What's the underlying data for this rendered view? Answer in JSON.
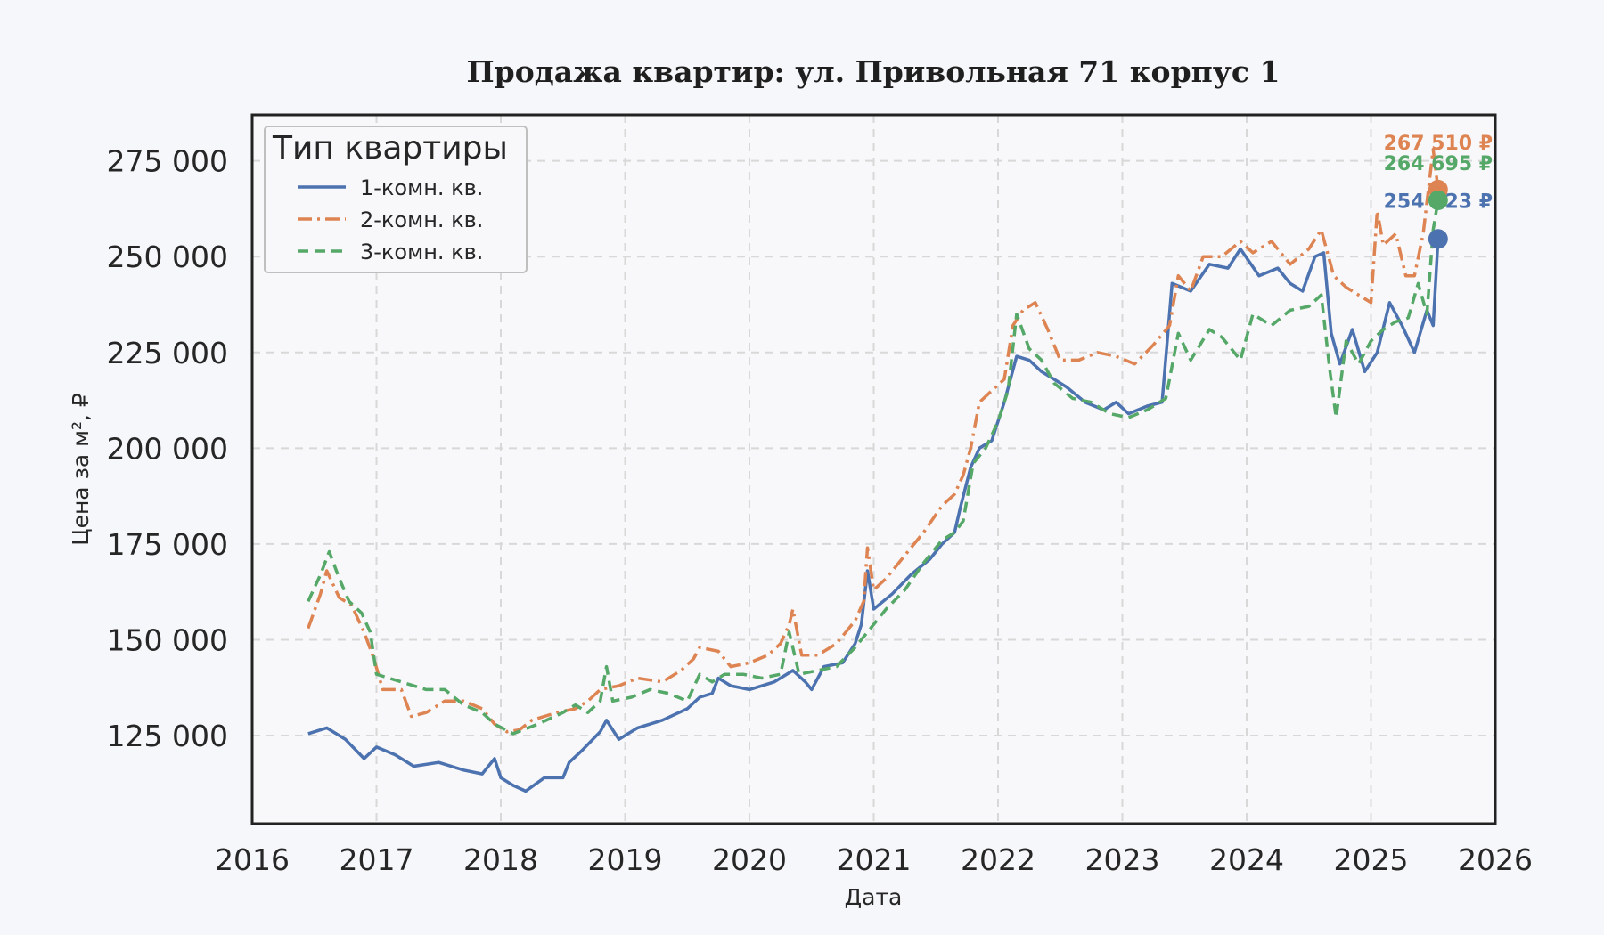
{
  "chart_data": {
    "type": "line",
    "title": "Продажа квартир: ул. Привольная 71 корпус 1",
    "xlabel": "Дата",
    "ylabel": "Цена за м², ₽",
    "xlim": [
      2016,
      2026
    ],
    "ylim": [
      102000,
      287000
    ],
    "x_ticks": [
      "2016",
      "2017",
      "2018",
      "2019",
      "2020",
      "2021",
      "2022",
      "2023",
      "2024",
      "2025",
      "2026"
    ],
    "y_ticks": [
      {
        "value": 125000,
        "label": "125 000"
      },
      {
        "value": 150000,
        "label": "150 000"
      },
      {
        "value": 175000,
        "label": "175 000"
      },
      {
        "value": 200000,
        "label": "200 000"
      },
      {
        "value": 225000,
        "label": "225 000"
      },
      {
        "value": 250000,
        "label": "250 000"
      },
      {
        "value": 275000,
        "label": "275 000"
      }
    ],
    "grid": true,
    "legend": {
      "title": "Тип квартиры",
      "position": "top-left"
    },
    "colors": {
      "one_room": "#4c72b0",
      "two_room": "#dd8452",
      "three_room": "#55a868"
    },
    "series": [
      {
        "name": "1-комн. кв.",
        "color": "#4c72b0",
        "style": "solid",
        "points": [
          [
            2016.45,
            125500
          ],
          [
            2016.6,
            127000
          ],
          [
            2016.75,
            124000
          ],
          [
            2016.9,
            119000
          ],
          [
            2017.0,
            122000
          ],
          [
            2017.15,
            120000
          ],
          [
            2017.3,
            117000
          ],
          [
            2017.5,
            118000
          ],
          [
            2017.7,
            116000
          ],
          [
            2017.85,
            115000
          ],
          [
            2017.95,
            119000
          ],
          [
            2018.0,
            114000
          ],
          [
            2018.1,
            112000
          ],
          [
            2018.2,
            110500
          ],
          [
            2018.35,
            114000
          ],
          [
            2018.5,
            114000
          ],
          [
            2018.55,
            118000
          ],
          [
            2018.65,
            121000
          ],
          [
            2018.8,
            126000
          ],
          [
            2018.85,
            129000
          ],
          [
            2018.95,
            124000
          ],
          [
            2019.1,
            127000
          ],
          [
            2019.3,
            129000
          ],
          [
            2019.5,
            132000
          ],
          [
            2019.6,
            135000
          ],
          [
            2019.7,
            136000
          ],
          [
            2019.75,
            140000
          ],
          [
            2019.85,
            138000
          ],
          [
            2020.0,
            137000
          ],
          [
            2020.2,
            139000
          ],
          [
            2020.35,
            142000
          ],
          [
            2020.45,
            139000
          ],
          [
            2020.5,
            137000
          ],
          [
            2020.6,
            143000
          ],
          [
            2020.75,
            144000
          ],
          [
            2020.85,
            149000
          ],
          [
            2020.9,
            154000
          ],
          [
            2020.95,
            168000
          ],
          [
            2021.0,
            158000
          ],
          [
            2021.15,
            162000
          ],
          [
            2021.3,
            167000
          ],
          [
            2021.45,
            171000
          ],
          [
            2021.55,
            175000
          ],
          [
            2021.65,
            178000
          ],
          [
            2021.7,
            185000
          ],
          [
            2021.78,
            195000
          ],
          [
            2021.85,
            200000
          ],
          [
            2021.95,
            202000
          ],
          [
            2022.05,
            212000
          ],
          [
            2022.15,
            224000
          ],
          [
            2022.25,
            223000
          ],
          [
            2022.35,
            220000
          ],
          [
            2022.45,
            218000
          ],
          [
            2022.55,
            216000
          ],
          [
            2022.7,
            212000
          ],
          [
            2022.85,
            210000
          ],
          [
            2022.95,
            212000
          ],
          [
            2023.05,
            209000
          ],
          [
            2023.2,
            211000
          ],
          [
            2023.32,
            212000
          ],
          [
            2023.4,
            243000
          ],
          [
            2023.55,
            241000
          ],
          [
            2023.7,
            248000
          ],
          [
            2023.85,
            247000
          ],
          [
            2023.95,
            252000
          ],
          [
            2024.1,
            245000
          ],
          [
            2024.25,
            247000
          ],
          [
            2024.35,
            243000
          ],
          [
            2024.45,
            241000
          ],
          [
            2024.55,
            250000
          ],
          [
            2024.62,
            251000
          ],
          [
            2024.68,
            230000
          ],
          [
            2024.75,
            222000
          ],
          [
            2024.85,
            231000
          ],
          [
            2024.95,
            220000
          ],
          [
            2025.05,
            225000
          ],
          [
            2025.15,
            238000
          ],
          [
            2025.25,
            232000
          ],
          [
            2025.35,
            225000
          ],
          [
            2025.45,
            236000
          ],
          [
            2025.5,
            232000
          ],
          [
            2025.54,
            254623
          ]
        ]
      },
      {
        "name": "2-комн. кв.",
        "color": "#dd8452",
        "style": "dashdot",
        "points": [
          [
            2016.45,
            153000
          ],
          [
            2016.55,
            162000
          ],
          [
            2016.6,
            168000
          ],
          [
            2016.7,
            161000
          ],
          [
            2016.8,
            159000
          ],
          [
            2016.9,
            152000
          ],
          [
            2016.98,
            145000
          ],
          [
            2017.05,
            137000
          ],
          [
            2017.2,
            137000
          ],
          [
            2017.28,
            130000
          ],
          [
            2017.4,
            131000
          ],
          [
            2017.55,
            134000
          ],
          [
            2017.7,
            134000
          ],
          [
            2017.85,
            132000
          ],
          [
            2017.95,
            128000
          ],
          [
            2018.05,
            126000
          ],
          [
            2018.15,
            126500
          ],
          [
            2018.25,
            129000
          ],
          [
            2018.45,
            131000
          ],
          [
            2018.6,
            132000
          ],
          [
            2018.7,
            134000
          ],
          [
            2018.8,
            137000
          ],
          [
            2018.95,
            138000
          ],
          [
            2019.1,
            140000
          ],
          [
            2019.3,
            139000
          ],
          [
            2019.45,
            142000
          ],
          [
            2019.55,
            145000
          ],
          [
            2019.6,
            148000
          ],
          [
            2019.75,
            147000
          ],
          [
            2019.85,
            143000
          ],
          [
            2020.0,
            144000
          ],
          [
            2020.15,
            146000
          ],
          [
            2020.25,
            149000
          ],
          [
            2020.32,
            154000
          ],
          [
            2020.35,
            158000
          ],
          [
            2020.42,
            146000
          ],
          [
            2020.55,
            146000
          ],
          [
            2020.7,
            149000
          ],
          [
            2020.85,
            155000
          ],
          [
            2020.92,
            160000
          ],
          [
            2020.95,
            174000
          ],
          [
            2021.0,
            163000
          ],
          [
            2021.1,
            166000
          ],
          [
            2021.2,
            170000
          ],
          [
            2021.3,
            174000
          ],
          [
            2021.4,
            178000
          ],
          [
            2021.55,
            185000
          ],
          [
            2021.65,
            188000
          ],
          [
            2021.72,
            193000
          ],
          [
            2021.78,
            200000
          ],
          [
            2021.85,
            212000
          ],
          [
            2021.95,
            215000
          ],
          [
            2022.05,
            218000
          ],
          [
            2022.12,
            232000
          ],
          [
            2022.2,
            236000
          ],
          [
            2022.3,
            238000
          ],
          [
            2022.4,
            231000
          ],
          [
            2022.5,
            223000
          ],
          [
            2022.65,
            223000
          ],
          [
            2022.8,
            225000
          ],
          [
            2022.95,
            224000
          ],
          [
            2023.1,
            222000
          ],
          [
            2023.25,
            227000
          ],
          [
            2023.38,
            232000
          ],
          [
            2023.45,
            245000
          ],
          [
            2023.55,
            241000
          ],
          [
            2023.65,
            250000
          ],
          [
            2023.8,
            250000
          ],
          [
            2023.95,
            254000
          ],
          [
            2024.05,
            251000
          ],
          [
            2024.2,
            254000
          ],
          [
            2024.35,
            248000
          ],
          [
            2024.5,
            252000
          ],
          [
            2024.6,
            257000
          ],
          [
            2024.7,
            245000
          ],
          [
            2024.8,
            242000
          ],
          [
            2024.9,
            240000
          ],
          [
            2025.0,
            238000
          ],
          [
            2025.05,
            262000
          ],
          [
            2025.1,
            253000
          ],
          [
            2025.2,
            256000
          ],
          [
            2025.28,
            245000
          ],
          [
            2025.35,
            245000
          ],
          [
            2025.42,
            256000
          ],
          [
            2025.5,
            278000
          ],
          [
            2025.54,
            267510
          ]
        ]
      },
      {
        "name": "3-комн. кв.",
        "color": "#55a868",
        "style": "dashed",
        "points": [
          [
            2016.45,
            160000
          ],
          [
            2016.55,
            167000
          ],
          [
            2016.62,
            173000
          ],
          [
            2016.7,
            166000
          ],
          [
            2016.78,
            160000
          ],
          [
            2016.88,
            157000
          ],
          [
            2016.95,
            152000
          ],
          [
            2017.0,
            141000
          ],
          [
            2017.2,
            139000
          ],
          [
            2017.4,
            137000
          ],
          [
            2017.55,
            137000
          ],
          [
            2017.7,
            133000
          ],
          [
            2017.85,
            131000
          ],
          [
            2017.95,
            128000
          ],
          [
            2018.1,
            125500
          ],
          [
            2018.3,
            128000
          ],
          [
            2018.5,
            131000
          ],
          [
            2018.6,
            133000
          ],
          [
            2018.7,
            131000
          ],
          [
            2018.8,
            134000
          ],
          [
            2018.85,
            143000
          ],
          [
            2018.9,
            134000
          ],
          [
            2019.05,
            135000
          ],
          [
            2019.2,
            137000
          ],
          [
            2019.35,
            136000
          ],
          [
            2019.5,
            134000
          ],
          [
            2019.6,
            141000
          ],
          [
            2019.7,
            139000
          ],
          [
            2019.8,
            141000
          ],
          [
            2019.95,
            141000
          ],
          [
            2020.1,
            140000
          ],
          [
            2020.25,
            141000
          ],
          [
            2020.32,
            152000
          ],
          [
            2020.4,
            141000
          ],
          [
            2020.55,
            142000
          ],
          [
            2020.7,
            143000
          ],
          [
            2020.85,
            148000
          ],
          [
            2020.95,
            152000
          ],
          [
            2021.1,
            158000
          ],
          [
            2021.25,
            163000
          ],
          [
            2021.4,
            170000
          ],
          [
            2021.55,
            176000
          ],
          [
            2021.65,
            178000
          ],
          [
            2021.72,
            181000
          ],
          [
            2021.8,
            196000
          ],
          [
            2021.9,
            200000
          ],
          [
            2022.0,
            207000
          ],
          [
            2022.08,
            215000
          ],
          [
            2022.15,
            235000
          ],
          [
            2022.25,
            226000
          ],
          [
            2022.35,
            223000
          ],
          [
            2022.45,
            217000
          ],
          [
            2022.6,
            213000
          ],
          [
            2022.75,
            212000
          ],
          [
            2022.9,
            209000
          ],
          [
            2023.05,
            208000
          ],
          [
            2023.2,
            210000
          ],
          [
            2023.35,
            213000
          ],
          [
            2023.45,
            230000
          ],
          [
            2023.55,
            223000
          ],
          [
            2023.7,
            231000
          ],
          [
            2023.8,
            229000
          ],
          [
            2023.9,
            225000
          ],
          [
            2023.95,
            223000
          ],
          [
            2024.05,
            235000
          ],
          [
            2024.2,
            232000
          ],
          [
            2024.35,
            236000
          ],
          [
            2024.5,
            237000
          ],
          [
            2024.6,
            240000
          ],
          [
            2024.67,
            220000
          ],
          [
            2024.72,
            208000
          ],
          [
            2024.8,
            228000
          ],
          [
            2024.9,
            222000
          ],
          [
            2025.0,
            228000
          ],
          [
            2025.1,
            231000
          ],
          [
            2025.2,
            233000
          ],
          [
            2025.3,
            234000
          ],
          [
            2025.38,
            243000
          ],
          [
            2025.45,
            235000
          ],
          [
            2025.5,
            257000
          ],
          [
            2025.54,
            264695
          ]
        ]
      }
    ],
    "end_points": [
      {
        "series": "1-комн. кв.",
        "x": 2025.54,
        "value": 254623,
        "label": "254 623 ₽",
        "color": "#4c72b0"
      },
      {
        "series": "2-комн. кв.",
        "x": 2025.54,
        "value": 267510,
        "label": "267 510 ₽",
        "color": "#dd8452"
      },
      {
        "series": "3-комн. кв.",
        "x": 2025.54,
        "value": 264695,
        "label": "264 695 ₽",
        "color": "#55a868"
      }
    ]
  }
}
